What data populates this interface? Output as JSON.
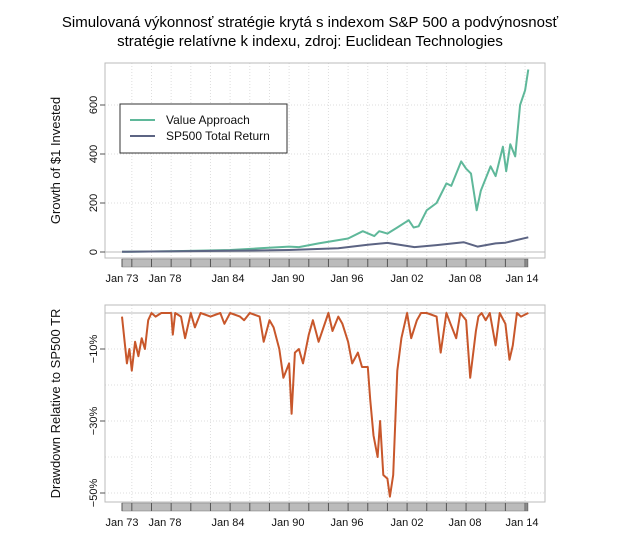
{
  "title_line1": "Simulovaná výkonnosť stratégie krytá s indexom S&P 500 a podvýnosnosť",
  "title_line2": "stratégie relatívne k indexu, zdroj: Euclidean Technologies",
  "chart_data": [
    {
      "type": "line",
      "ylabel": "Growth of $1 Invested",
      "ylim": [
        0,
        750
      ],
      "yticks": [
        0,
        200,
        400,
        600
      ],
      "xticks": [
        "Jan 73",
        "Jan 78",
        "Jan 84",
        "Jan 90",
        "Jan 96",
        "Jan 02",
        "Jan 08",
        "Jan 14"
      ],
      "grid": true,
      "legend_position": "top-left",
      "series": [
        {
          "name": "Value Approach",
          "color": "#5fb89a",
          "x": [
            "1973-01",
            "1978-01",
            "1984-01",
            "1987-01",
            "1990-01",
            "1991-01",
            "1993-01",
            "1996-01",
            "1997-07",
            "1998-09",
            "1999-03",
            "2000-01",
            "2001-01",
            "2002-03",
            "2002-09",
            "2003-03",
            "2004-01",
            "2005-01",
            "2006-01",
            "2006-07",
            "2007-07",
            "2008-01",
            "2008-07",
            "2009-02",
            "2009-07",
            "2010-07",
            "2011-01",
            "2011-10",
            "2012-02",
            "2012-07",
            "2013-01",
            "2013-07",
            "2014-01",
            "2014-05"
          ],
          "y": [
            1,
            3,
            8,
            15,
            22,
            20,
            35,
            55,
            85,
            65,
            85,
            75,
            100,
            130,
            100,
            105,
            170,
            200,
            280,
            270,
            370,
            340,
            320,
            170,
            250,
            350,
            310,
            430,
            330,
            440,
            390,
            600,
            660,
            745
          ]
        },
        {
          "name": "SP500 Total Return",
          "color": "#5c6483",
          "x": [
            "1973-01",
            "1984-01",
            "1990-01",
            "1995-01",
            "1998-01",
            "2000-01",
            "2002-10",
            "2005-01",
            "2007-10",
            "2009-03",
            "2011-01",
            "2012-01",
            "2014-05"
          ],
          "y": [
            1,
            5,
            8,
            15,
            30,
            37,
            20,
            28,
            40,
            22,
            35,
            38,
            60
          ]
        }
      ]
    },
    {
      "type": "line",
      "ylabel": "Drawdown Relative to SP500 TR",
      "ylim": [
        -52,
        0
      ],
      "yticks": [
        -10,
        -30,
        -50
      ],
      "ytick_labels": [
        "−10%",
        "−30%",
        "−50%"
      ],
      "xticks": [
        "Jan 73",
        "Jan 78",
        "Jan 84",
        "Jan 90",
        "Jan 96",
        "Jan 02",
        "Jan 08",
        "Jan 14"
      ],
      "grid": true,
      "series": [
        {
          "name": "",
          "color": "#c8572b",
          "x": [
            "1973-01",
            "1973-07",
            "1973-10",
            "1974-01",
            "1974-05",
            "1974-09",
            "1975-01",
            "1975-05",
            "1975-09",
            "1976-01",
            "1976-06",
            "1977-01",
            "1978-01",
            "1978-03",
            "1978-06",
            "1979-01",
            "1979-06",
            "1980-01",
            "1980-06",
            "1981-01",
            "1982-01",
            "1983-01",
            "1983-06",
            "1984-01",
            "1985-01",
            "1985-06",
            "1986-01",
            "1987-01",
            "1987-06",
            "1988-01",
            "1988-06",
            "1989-01",
            "1989-06",
            "1990-01",
            "1990-04",
            "1990-08",
            "1991-01",
            "1991-06",
            "1992-01",
            "1992-06",
            "1993-01",
            "1994-01",
            "1994-06",
            "1995-01",
            "1995-06",
            "1996-01",
            "1996-06",
            "1997-01",
            "1997-06",
            "1998-01",
            "1998-04",
            "1998-08",
            "1999-01",
            "1999-04",
            "1999-08",
            "2000-01",
            "2000-04",
            "2000-08",
            "2001-01",
            "2001-06",
            "2002-01",
            "2002-06",
            "2003-01",
            "2003-06",
            "2004-01",
            "2005-01",
            "2005-06",
            "2006-01",
            "2006-06",
            "2007-01",
            "2007-06",
            "2008-01",
            "2008-06",
            "2009-01",
            "2009-04",
            "2009-08",
            "2010-01",
            "2010-06",
            "2011-01",
            "2011-06",
            "2012-01",
            "2012-06",
            "2012-10",
            "2013-03",
            "2013-08",
            "2014-05"
          ],
          "y": [
            -1,
            -14,
            -10,
            -16,
            -8,
            -12,
            -7,
            -10,
            -2,
            0,
            -1,
            0,
            0,
            -6,
            0,
            -1,
            -7,
            0,
            -4,
            0,
            -1,
            0,
            -3,
            0,
            -1,
            -2,
            0,
            -1,
            -8,
            -2,
            -4,
            -10,
            -18,
            -14,
            -28,
            -11,
            -10,
            -14,
            -6,
            -2,
            -8,
            0,
            -5,
            -1,
            -3,
            -8,
            -14,
            -11,
            -15,
            -15,
            -24,
            -34,
            -40,
            -30,
            -45,
            -46,
            -51,
            -45,
            -16,
            -7,
            0,
            -7,
            -2,
            0,
            0,
            -1,
            -11,
            0,
            -3,
            -7,
            0,
            -2,
            -18,
            -5,
            -1,
            0,
            -2,
            0,
            -9,
            0,
            -3,
            -13,
            -9,
            0,
            -1,
            0
          ]
        }
      ]
    }
  ]
}
